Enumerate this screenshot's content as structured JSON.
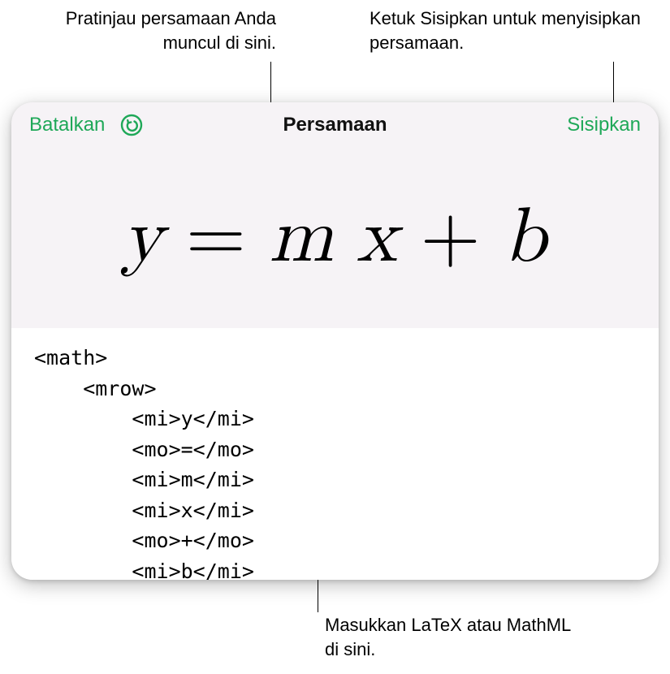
{
  "callouts": {
    "left_top": "Pratinjau persamaan\nAnda muncul di sini.",
    "right_top": "Ketuk Sisipkan untuk\nmenyisipkan persamaan.",
    "bottom": "Masukkan LaTeX atau\nMathML di sini."
  },
  "header": {
    "cancel_label": "Batalkan",
    "title": "Persamaan",
    "insert_label": "Sisipkan"
  },
  "preview": {
    "equation_html": "y<span class='sp'></span><span class='op'>=</span><span class='sp'></span>m<span class='sp'></span>x<span class='sp'></span><span class='op'>+</span><span class='sp'></span>b"
  },
  "code": {
    "lines": [
      "<math>",
      "    <mrow>",
      "        <mi>y</mi>",
      "        <mo>=</mo>",
      "        <mi>m</mi>",
      "        <mi>x</mi>",
      "        <mo>+</mo>",
      "        <mi>b</mi>"
    ]
  },
  "colors": {
    "accent": "#1fa858",
    "panel_bg": "#f6f3f6",
    "code_bg": "#ffffff"
  }
}
